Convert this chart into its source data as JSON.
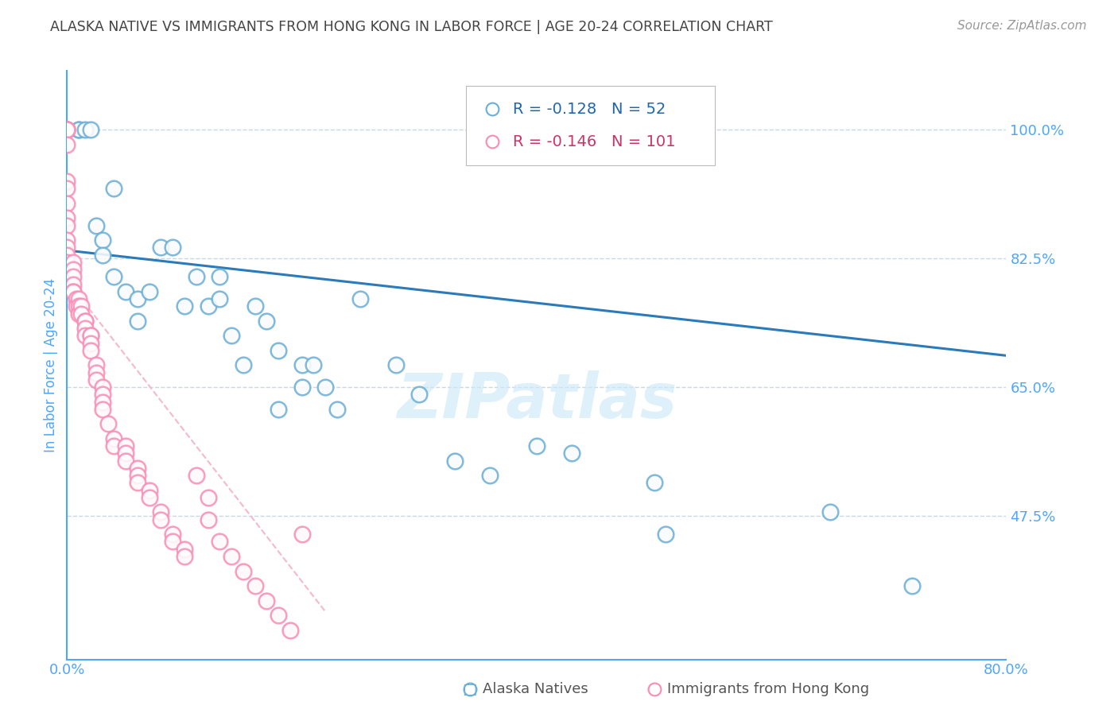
{
  "title": "ALASKA NATIVE VS IMMIGRANTS FROM HONG KONG IN LABOR FORCE | AGE 20-24 CORRELATION CHART",
  "source": "Source: ZipAtlas.com",
  "ylabel": "In Labor Force | Age 20-24",
  "xmin": 0.0,
  "xmax": 0.8,
  "ymin": 0.28,
  "ymax": 1.08,
  "yticks": [
    0.475,
    0.65,
    0.825,
    1.0
  ],
  "ytick_labels": [
    "47.5%",
    "65.0%",
    "82.5%",
    "100.0%"
  ],
  "xticks": [
    0.0,
    0.1,
    0.2,
    0.3,
    0.4,
    0.5,
    0.6,
    0.7,
    0.8
  ],
  "xtick_labels": [
    "0.0%",
    "",
    "",
    "",
    "",
    "",
    "",
    "",
    "80.0%"
  ],
  "blue_R": "-0.128",
  "blue_N": "52",
  "pink_R": "-0.146",
  "pink_N": "101",
  "blue_color": "#6baed6",
  "pink_color": "#fa8cb4",
  "blue_trend_color": "#2b7bba",
  "pink_trend_color": "#f5b8d0",
  "axis_color": "#4da6ff",
  "grid_color": "#c8d8e8",
  "title_color": "#444444",
  "source_color": "#999999",
  "watermark": "ZIPatlas",
  "blue_scatter_x": [
    0.0,
    0.0,
    0.01,
    0.01,
    0.015,
    0.02,
    0.025,
    0.03,
    0.03,
    0.04,
    0.04,
    0.05,
    0.06,
    0.06,
    0.07,
    0.08,
    0.09,
    0.1,
    0.11,
    0.12,
    0.13,
    0.13,
    0.14,
    0.15,
    0.16,
    0.17,
    0.18,
    0.18,
    0.2,
    0.2,
    0.21,
    0.22,
    0.23,
    0.25,
    0.28,
    0.3,
    0.33,
    0.36,
    0.4,
    0.43,
    0.5,
    0.51,
    0.65,
    0.72
  ],
  "blue_scatter_y": [
    1.0,
    1.0,
    1.0,
    1.0,
    1.0,
    1.0,
    0.87,
    0.85,
    0.83,
    0.92,
    0.8,
    0.78,
    0.74,
    0.77,
    0.78,
    0.84,
    0.84,
    0.76,
    0.8,
    0.76,
    0.8,
    0.77,
    0.72,
    0.68,
    0.76,
    0.74,
    0.7,
    0.62,
    0.68,
    0.65,
    0.68,
    0.65,
    0.62,
    0.77,
    0.68,
    0.64,
    0.55,
    0.53,
    0.57,
    0.56,
    0.52,
    0.45,
    0.48,
    0.38
  ],
  "pink_scatter_x": [
    0.0,
    0.0,
    0.0,
    0.0,
    0.0,
    0.0,
    0.0,
    0.0,
    0.0,
    0.0,
    0.0,
    0.0,
    0.0,
    0.0,
    0.005,
    0.005,
    0.005,
    0.005,
    0.005,
    0.005,
    0.008,
    0.008,
    0.01,
    0.01,
    0.01,
    0.012,
    0.012,
    0.015,
    0.015,
    0.015,
    0.015,
    0.02,
    0.02,
    0.02,
    0.02,
    0.025,
    0.025,
    0.025,
    0.03,
    0.03,
    0.03,
    0.03,
    0.035,
    0.04,
    0.04,
    0.05,
    0.05,
    0.05,
    0.06,
    0.06,
    0.06,
    0.07,
    0.07,
    0.08,
    0.08,
    0.09,
    0.09,
    0.1,
    0.1,
    0.11,
    0.12,
    0.12,
    0.13,
    0.14,
    0.15,
    0.16,
    0.17,
    0.18,
    0.19,
    0.2
  ],
  "pink_scatter_y": [
    1.0,
    1.0,
    1.0,
    1.0,
    0.98,
    0.93,
    0.92,
    0.9,
    0.88,
    0.87,
    0.85,
    0.84,
    0.83,
    0.82,
    0.82,
    0.81,
    0.8,
    0.79,
    0.78,
    0.78,
    0.77,
    0.76,
    0.77,
    0.76,
    0.75,
    0.76,
    0.75,
    0.74,
    0.74,
    0.73,
    0.72,
    0.72,
    0.72,
    0.71,
    0.7,
    0.68,
    0.67,
    0.66,
    0.65,
    0.64,
    0.63,
    0.62,
    0.6,
    0.58,
    0.57,
    0.57,
    0.56,
    0.55,
    0.54,
    0.53,
    0.52,
    0.51,
    0.5,
    0.48,
    0.47,
    0.45,
    0.44,
    0.43,
    0.42,
    0.53,
    0.5,
    0.47,
    0.44,
    0.42,
    0.4,
    0.38,
    0.36,
    0.34,
    0.32,
    0.45
  ],
  "blue_trend_x0": 0.0,
  "blue_trend_y0": 0.836,
  "blue_trend_x1": 0.8,
  "blue_trend_y1": 0.693,
  "pink_trend_x0": 0.0,
  "pink_trend_y0": 0.795,
  "pink_trend_x1": 0.22,
  "pink_trend_y1": 0.345
}
